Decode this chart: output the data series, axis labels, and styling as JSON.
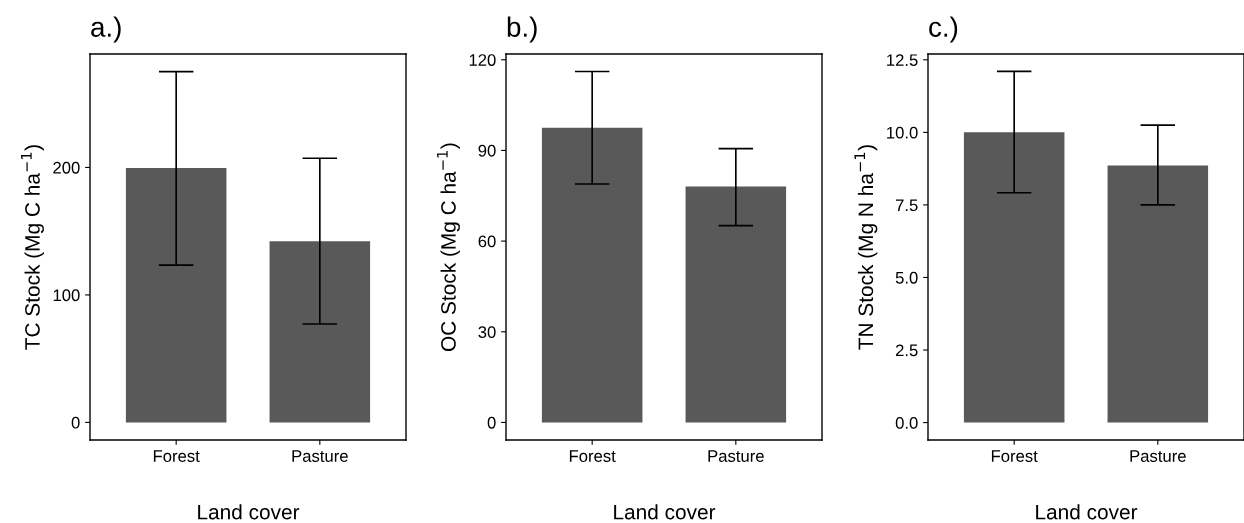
{
  "chart_data": [
    {
      "type": "bar",
      "title": "a.)",
      "xlabel": "Land cover",
      "ylabel": "TC Stock (Mg C ha$^{−1}$)",
      "categories": [
        "Forest",
        "Pasture"
      ],
      "values": [
        199.5,
        142.2
      ],
      "errors": [
        [
          123.4,
          275.2
        ],
        [
          77.2,
          207.2
        ]
      ],
      "color": "#595959",
      "ylim": [
        -13.8,
        289
      ],
      "yticks": [
        0,
        100,
        200
      ],
      "grid": false
    },
    {
      "type": "bar",
      "title": "b.)",
      "xlabel": "Land cover",
      "ylabel": "OC Stock (Mg C ha$^{−1}$)",
      "categories": [
        "Forest",
        "Pasture"
      ],
      "values": [
        97.5,
        78.1
      ],
      "errors": [
        [
          78.9,
          116.1
        ],
        [
          65.1,
          90.6
        ]
      ],
      "color": "#595959",
      "ylim": [
        -5.8,
        121.9
      ],
      "yticks": [
        0,
        30,
        60,
        90,
        120
      ],
      "grid": false
    },
    {
      "type": "bar",
      "title": "c.)",
      "xlabel": "Land cover",
      "ylabel": "TN Stock (Mg N ha$^{−1}$)",
      "categories": [
        "Forest",
        "Pasture"
      ],
      "values": [
        10.0,
        8.86
      ],
      "errors": [
        [
          7.92,
          12.1
        ],
        [
          7.5,
          10.25
        ]
      ],
      "color": "#595959",
      "ylim": [
        -0.6,
        12.7
      ],
      "yticks": [
        {
          "value": 2.5,
          "label": "2.5"
        },
        {
          "value": 5,
          "label": "5.0"
        },
        {
          "value": 7.5,
          "label": "7.5"
        },
        {
          "value": 10,
          "label": "10.0"
        },
        {
          "value": 12.5,
          "label": "12.5"
        },
        {
          "value": 0,
          "label": "0.0"
        }
      ],
      "grid": false
    }
  ]
}
